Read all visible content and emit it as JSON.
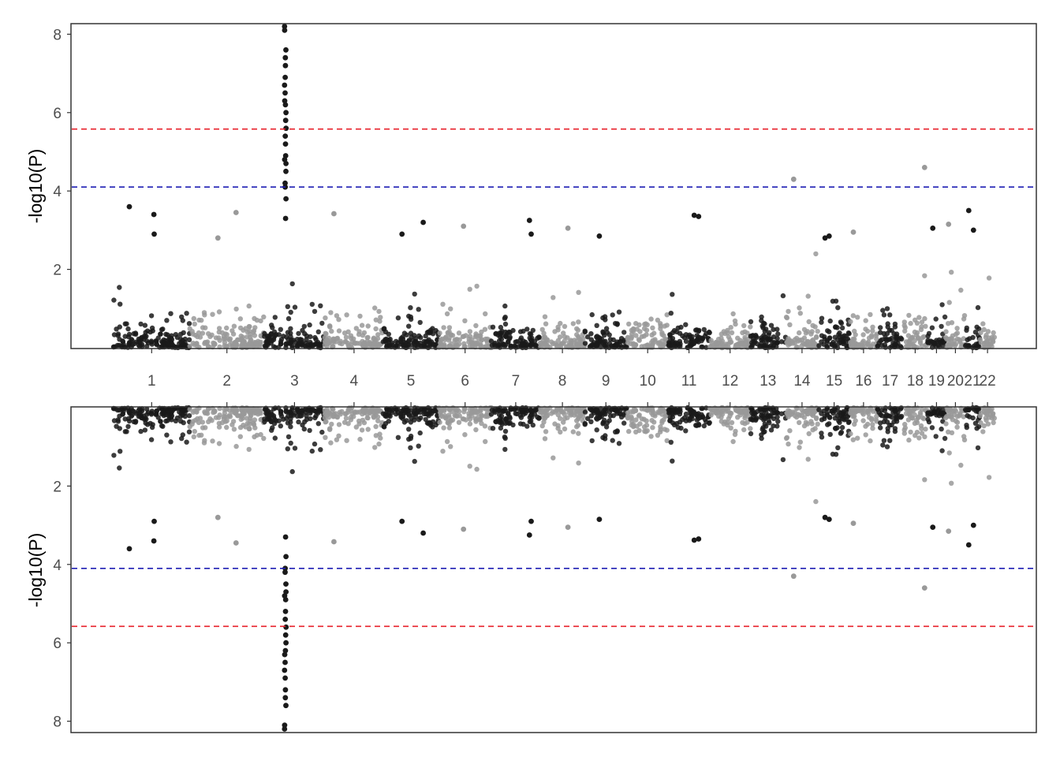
{
  "chart_data": {
    "type": "scatter",
    "subtype": "mirrored-manhattan",
    "chromosomes": [
      "1",
      "2",
      "3",
      "4",
      "5",
      "6",
      "7",
      "8",
      "9",
      "10",
      "11",
      "12",
      "13",
      "14",
      "15",
      "16",
      "17",
      "18",
      "19",
      "20",
      "21",
      "22"
    ],
    "chromosome_colors": [
      "#1a1a1a",
      "#999999"
    ],
    "chromosome_widths": [
      248,
      242,
      198,
      190,
      181,
      171,
      159,
      145,
      138,
      134,
      135,
      133,
      114,
      107,
      102,
      90,
      83,
      80,
      59,
      64,
      47,
      51
    ],
    "panels": [
      {
        "position": "top",
        "ylabel": "-log10(P)",
        "ylim": [
          0,
          8.3
        ],
        "yticks": [
          2,
          4,
          6,
          8
        ],
        "direction": "up",
        "thresholds": [
          {
            "value": 5.58,
            "color": "#e8202a"
          },
          {
            "value": 4.1,
            "color": "#1f1fb4"
          }
        ]
      },
      {
        "position": "bottom",
        "ylabel": "-log10(P)",
        "ylim": [
          0,
          8.3
        ],
        "yticks": [
          2,
          4,
          6,
          8
        ],
        "direction": "down",
        "thresholds": [
          {
            "value": 5.58,
            "color": "#e8202a"
          },
          {
            "value": 4.1,
            "color": "#1f1fb4"
          }
        ]
      }
    ],
    "notable_points": [
      {
        "chromosome": "3",
        "values": [
          8.2,
          8.1,
          7.6,
          7.4,
          7.2,
          6.9,
          6.7,
          6.5,
          6.3,
          6.2,
          6.0,
          5.8,
          5.6,
          5.4,
          5.2,
          4.9,
          4.8,
          4.7,
          4.5,
          4.2,
          4.1,
          3.8,
          3.3
        ]
      },
      {
        "chromosome": "14",
        "values": [
          4.3
        ]
      },
      {
        "chromosome": "18",
        "values": [
          4.6
        ]
      },
      {
        "chromosome": "1",
        "values": [
          3.6,
          3.4,
          2.9
        ]
      },
      {
        "chromosome": "2",
        "values": [
          3.45,
          2.8
        ]
      },
      {
        "chromosome": "4",
        "values": [
          3.42
        ]
      },
      {
        "chromosome": "7",
        "values": [
          3.25,
          2.9
        ]
      },
      {
        "chromosome": "11",
        "values": [
          3.35,
          3.38
        ]
      },
      {
        "chromosome": "19",
        "values": [
          3.05
        ]
      },
      {
        "chromosome": "20",
        "values": [
          3.15
        ]
      },
      {
        "chromosome": "21",
        "values": [
          3.5,
          3.0
        ]
      },
      {
        "chromosome": "5",
        "values": [
          3.2,
          2.9
        ]
      },
      {
        "chromosome": "6",
        "values": [
          3.1
        ]
      },
      {
        "chromosome": "8",
        "values": [
          3.05
        ]
      },
      {
        "chromosome": "9",
        "values": [
          2.85
        ]
      },
      {
        "chromosome": "15",
        "values": [
          2.85,
          2.8
        ]
      },
      {
        "chromosome": "16",
        "values": [
          2.95
        ]
      }
    ],
    "background_max": 2.6,
    "grid": false
  }
}
